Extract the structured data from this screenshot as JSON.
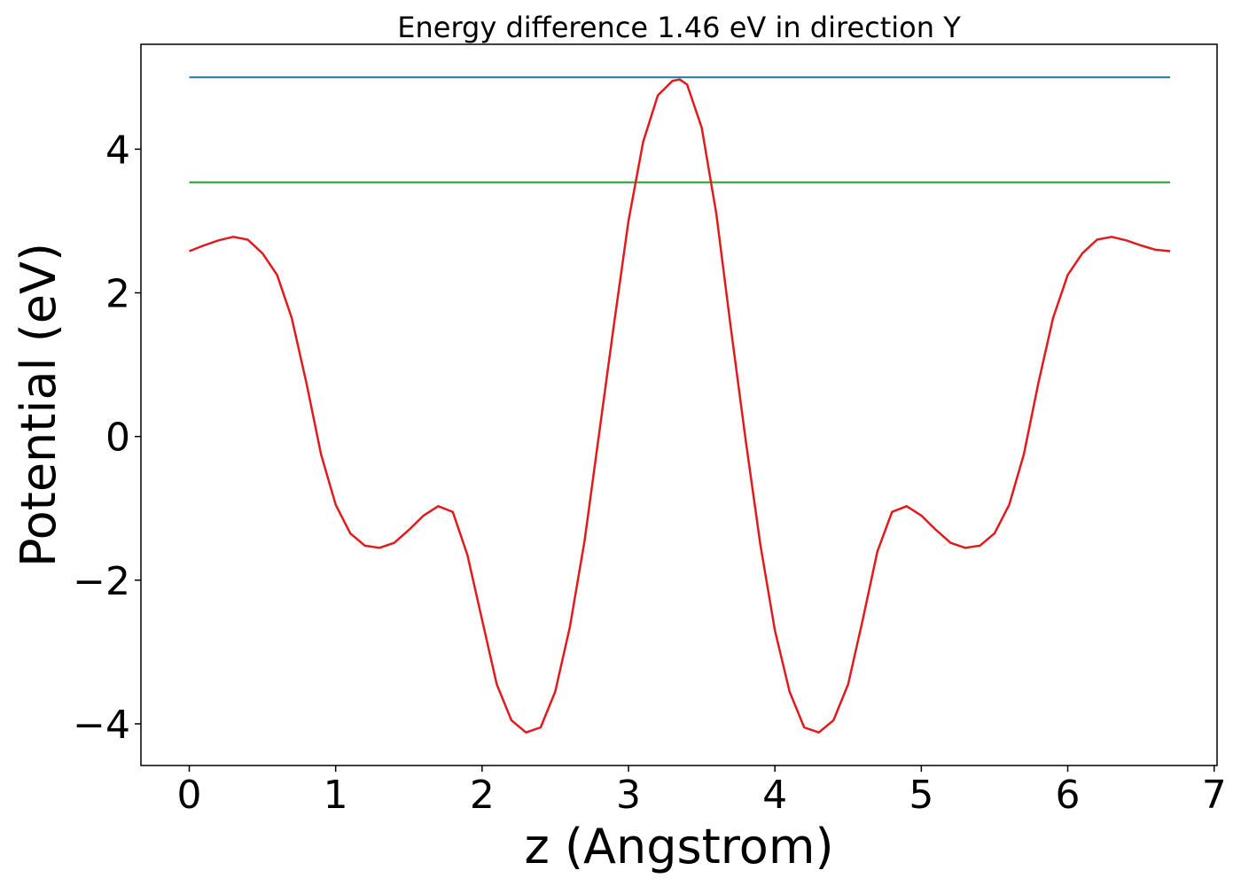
{
  "chart_data": {
    "type": "line",
    "title": "Energy difference 1.46 eV in direction Y",
    "xlabel": "z (Angstrom)",
    "ylabel": "Potential (eV)",
    "xlim": [
      -0.33,
      7.02
    ],
    "ylim": [
      -4.58,
      5.46
    ],
    "xticks": [
      0,
      1,
      2,
      3,
      4,
      5,
      6,
      7
    ],
    "xtick_labels": [
      "0",
      "1",
      "2",
      "3",
      "4",
      "5",
      "6",
      "7"
    ],
    "yticks": [
      -4,
      -2,
      0,
      2,
      4
    ],
    "ytick_labels": [
      "−4",
      "−2",
      "0",
      "2",
      "4"
    ],
    "grid": false,
    "legend": "none",
    "series": [
      {
        "color": "#1f77b4",
        "x": [
          0,
          6.7
        ],
        "y": [
          5.0,
          5.0
        ]
      },
      {
        "color": "#2ca02c",
        "x": [
          0,
          6.7
        ],
        "y": [
          3.54,
          3.54
        ]
      },
      {
        "color": "#e31a1c",
        "x": [
          0,
          0.1,
          0.2,
          0.3,
          0.4,
          0.5,
          0.6,
          0.7,
          0.8,
          0.9,
          1.0,
          1.1,
          1.2,
          1.3,
          1.4,
          1.5,
          1.6,
          1.7,
          1.8,
          1.9,
          2.0,
          2.1,
          2.2,
          2.3,
          2.4,
          2.5,
          2.6,
          2.7,
          2.8,
          2.9,
          3.0,
          3.1,
          3.2,
          3.3,
          3.35,
          3.4,
          3.5,
          3.6,
          3.7,
          3.8,
          3.9,
          4.0,
          4.1,
          4.2,
          4.3,
          4.4,
          4.5,
          4.6,
          4.7,
          4.8,
          4.9,
          5.0,
          5.1,
          5.2,
          5.3,
          5.4,
          5.5,
          5.6,
          5.7,
          5.8,
          5.9,
          6.0,
          6.1,
          6.2,
          6.3,
          6.4,
          6.5,
          6.6,
          6.7
        ],
        "y": [
          2.58,
          2.66,
          2.73,
          2.78,
          2.74,
          2.55,
          2.25,
          1.65,
          0.75,
          -0.25,
          -0.95,
          -1.35,
          -1.52,
          -1.55,
          -1.48,
          -1.3,
          -1.1,
          -0.97,
          -1.05,
          -1.65,
          -2.55,
          -3.45,
          -3.95,
          -4.12,
          -4.05,
          -3.55,
          -2.65,
          -1.45,
          0.05,
          1.55,
          3.0,
          4.1,
          4.75,
          4.95,
          4.97,
          4.9,
          4.3,
          3.1,
          1.5,
          -0.05,
          -1.5,
          -2.7,
          -3.55,
          -4.05,
          -4.12,
          -3.95,
          -3.45,
          -2.55,
          -1.6,
          -1.05,
          -0.97,
          -1.1,
          -1.3,
          -1.48,
          -1.55,
          -1.52,
          -1.35,
          -0.95,
          -0.25,
          0.75,
          1.65,
          2.25,
          2.55,
          2.74,
          2.78,
          2.73,
          2.66,
          2.6,
          2.58
        ]
      }
    ]
  }
}
